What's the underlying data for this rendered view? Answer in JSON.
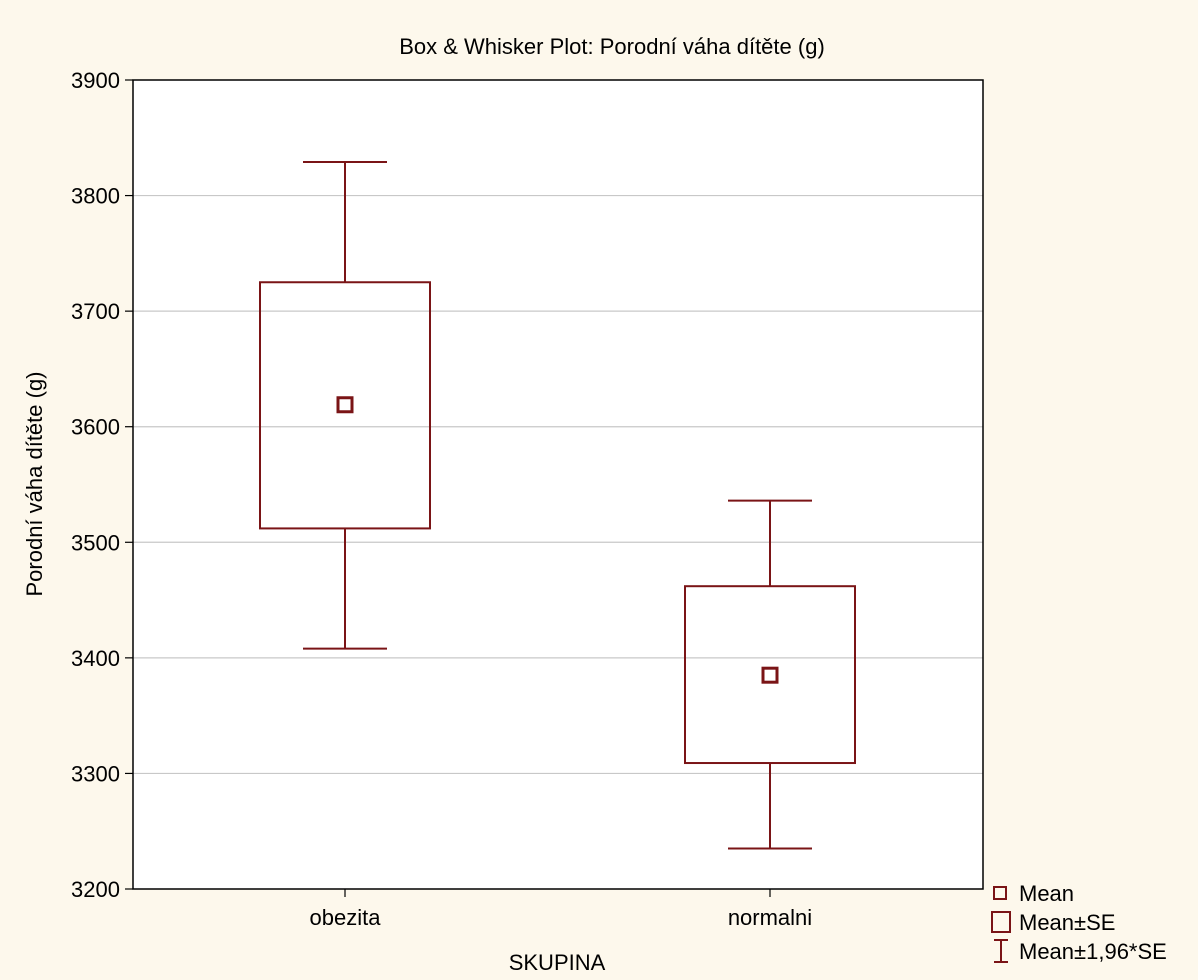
{
  "chart_data": {
    "type": "box",
    "title": "Box & Whisker Plot: Porodní váha dítěte (g)",
    "xlabel": "SKUPINA",
    "ylabel": "Porodní váha dítěte (g)",
    "ylim": [
      3200,
      3900
    ],
    "yticks": [
      3200,
      3300,
      3400,
      3500,
      3600,
      3700,
      3800,
      3900
    ],
    "grid": true,
    "legend_position": "bottom-right",
    "categories": [
      "obezita",
      "normalni"
    ],
    "groups": [
      {
        "category": "obezita",
        "mean": 3619,
        "se_low": 3512,
        "se_high": 3725,
        "ci_low": 3408,
        "ci_high": 3829
      },
      {
        "category": "normalni",
        "mean": 3385,
        "se_low": 3309,
        "se_high": 3462,
        "ci_low": 3235,
        "ci_high": 3536
      }
    ],
    "legend": [
      {
        "key": "mean",
        "label": "Mean"
      },
      {
        "key": "se",
        "label": "Mean±SE"
      },
      {
        "key": "ci",
        "label": "Mean±1,96*SE"
      }
    ],
    "colors": {
      "mark": "#7a1416",
      "background": "#fdf8ec",
      "plot_area": "#ffffff",
      "grid": "#c8c8c8"
    }
  }
}
